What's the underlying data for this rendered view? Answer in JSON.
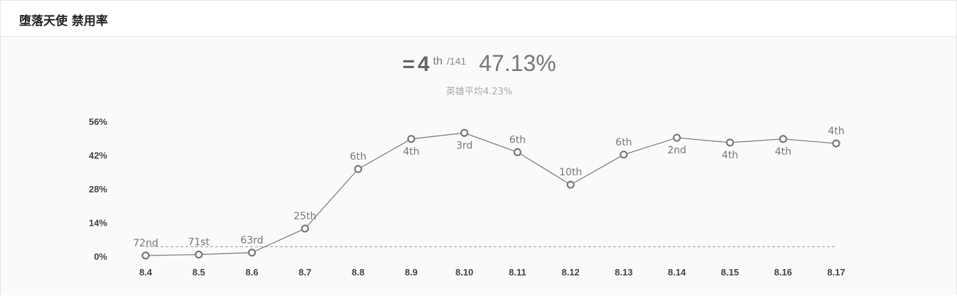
{
  "header": {
    "title": "堕落天使 禁用率"
  },
  "summary": {
    "equal_sign": "=",
    "rank": "4",
    "rank_suffix": "th",
    "total": "/141",
    "rate": "47.13%",
    "average_text": "英雄平均4.23%"
  },
  "chart_data": {
    "type": "line",
    "categories": [
      "8.4",
      "8.5",
      "8.6",
      "8.7",
      "8.8",
      "8.9",
      "8.10",
      "8.11",
      "8.12",
      "8.13",
      "8.14",
      "8.15",
      "8.16",
      "8.17"
    ],
    "series": [
      {
        "values": [
          0.6,
          1.0,
          1.8,
          11.8,
          36.5,
          49.0,
          51.5,
          43.5,
          30.0,
          42.5,
          49.5,
          47.5,
          49.0,
          47.13
        ],
        "ranks": [
          "72nd",
          "71st",
          "63rd",
          "25th",
          "6th",
          "4th",
          "3rd",
          "6th",
          "10th",
          "6th",
          "2nd",
          "4th",
          "4th",
          "4th"
        ],
        "label_positions": [
          "above",
          "above",
          "above",
          "above",
          "above",
          "below",
          "below",
          "above",
          "above",
          "above",
          "below",
          "below",
          "below",
          "above"
        ]
      }
    ],
    "average_line": 4.23,
    "yticks": [
      "0%",
      "14%",
      "28%",
      "42%",
      "56%"
    ],
    "ytick_values": [
      0,
      14,
      28,
      42,
      56
    ],
    "ylim": [
      0,
      56
    ],
    "grid": false,
    "colors": {
      "line": "#777777",
      "marker_stroke": "#777777",
      "marker_fill": "#ffffff",
      "average_line": "#999999"
    }
  }
}
